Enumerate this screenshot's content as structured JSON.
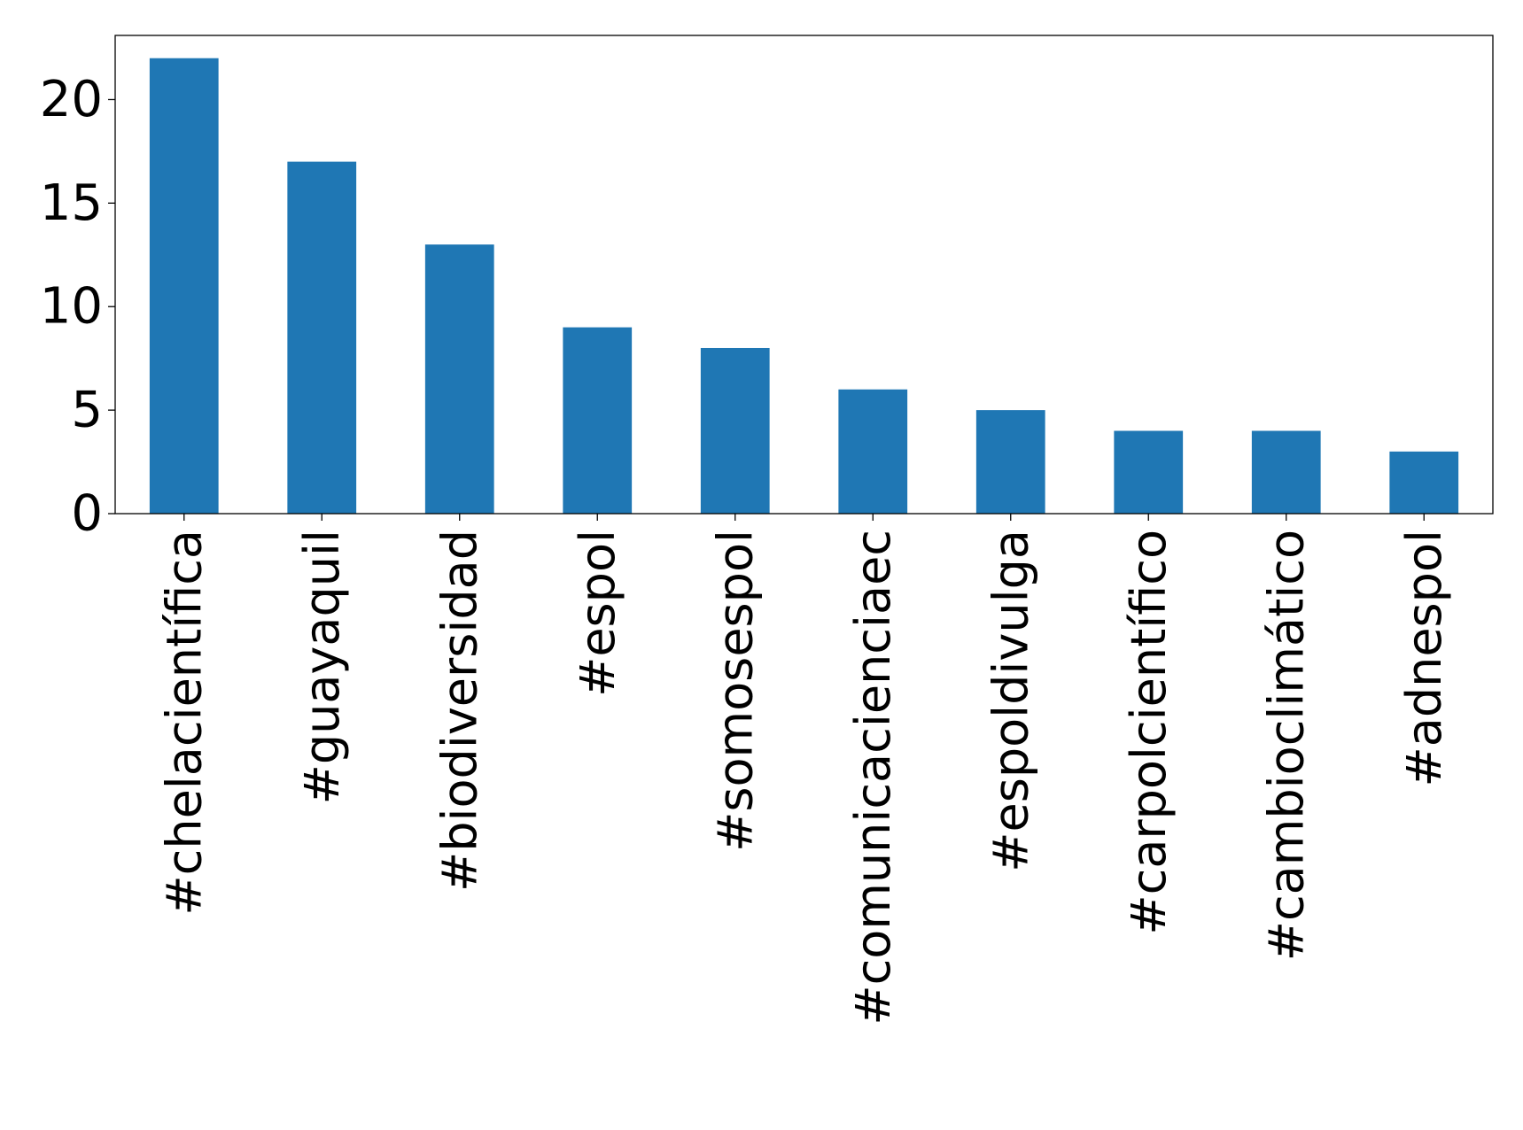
{
  "chart_data": {
    "type": "bar",
    "categories": [
      "#chelacientífica",
      "#guayaquil",
      "#biodiversidad",
      "#espol",
      "#somosespol",
      "#comunicacienciaec",
      "#espoldivulga",
      "#carpolcientífico",
      "#cambioclimático",
      "#adnespol"
    ],
    "values": [
      22,
      17,
      13,
      9,
      8,
      6,
      5,
      4,
      4,
      3
    ],
    "ylim": [
      0,
      23.1
    ],
    "yticks": [
      0,
      5,
      10,
      15,
      20
    ],
    "ytick_labels": [
      "0",
      "5",
      "10",
      "15",
      "20"
    ],
    "title": "",
    "xlabel": "",
    "ylabel": "",
    "bar_color": "#1f77b4",
    "grid": false,
    "legend": "none",
    "xtick_rotation": "vertical"
  }
}
